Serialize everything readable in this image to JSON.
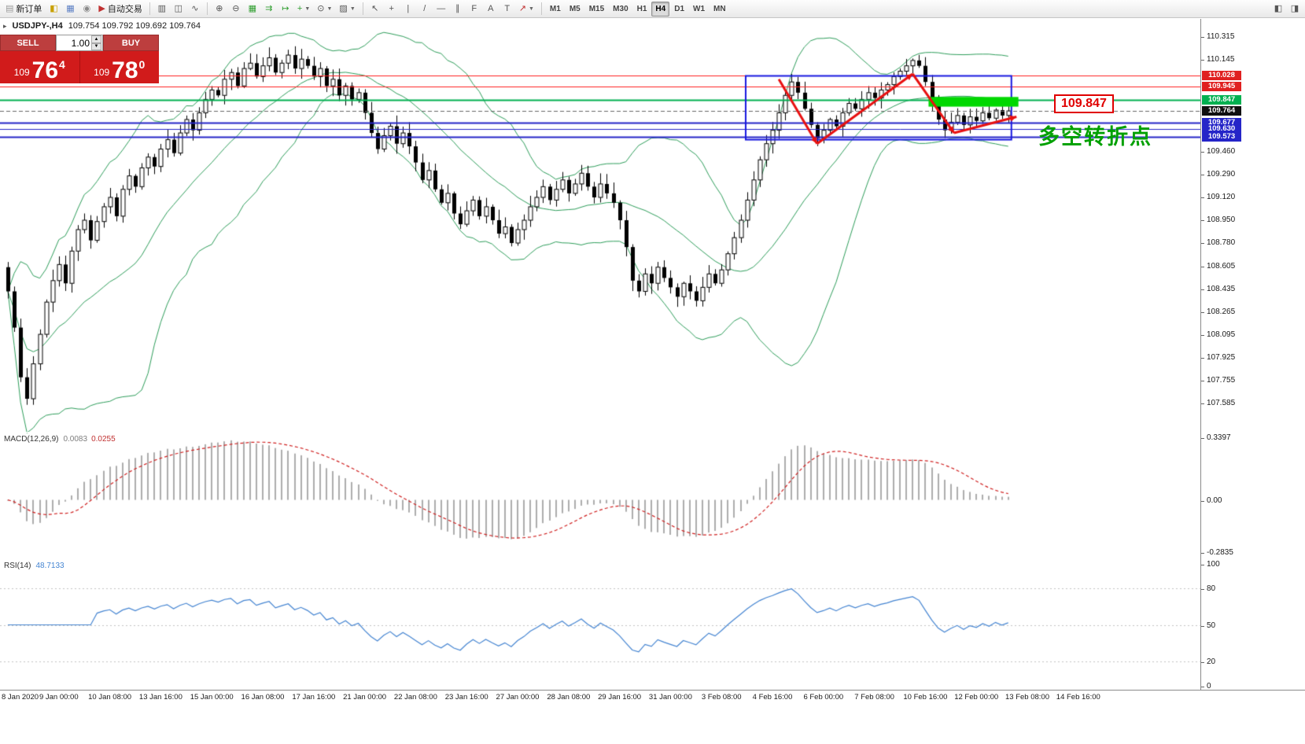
{
  "toolbar": {
    "groups": [
      [
        {
          "name": "new-order-button",
          "glyph": "▤",
          "glyph_color": "#9a9a9a",
          "label": "新订单"
        },
        {
          "name": "market-watch-button",
          "glyph": "◧",
          "glyph_color": "#c8a000"
        },
        {
          "name": "data-window-button",
          "glyph": "▦",
          "glyph_color": "#5b7fc4"
        },
        {
          "name": "navigator-button",
          "glyph": "◉",
          "glyph_color": "#8a8a8a"
        },
        {
          "name": "auto-trading-button",
          "glyph": "▶",
          "glyph_color": "#c03030",
          "label": "自动交易"
        }
      ],
      [
        {
          "name": "bars-chart-button",
          "glyph": "▥"
        },
        {
          "name": "candlestick-chart-button",
          "glyph": "◫"
        },
        {
          "name": "line-chart-button",
          "glyph": "∿"
        }
      ],
      [
        {
          "name": "zoom-in-button",
          "glyph": "⊕"
        },
        {
          "name": "zoom-out-button",
          "glyph": "⊖"
        },
        {
          "name": "tile-windows-button",
          "glyph": "▦",
          "glyph_color": "#2f9e2f"
        },
        {
          "name": "auto-scroll-button",
          "glyph": "⇉",
          "glyph_color": "#2f9e2f"
        },
        {
          "name": "chart-shift-button",
          "glyph": "↦",
          "glyph_color": "#2f9e2f"
        },
        {
          "name": "indicators-button",
          "glyph": "+",
          "glyph_color": "#2f9e2f",
          "caret": true
        },
        {
          "name": "periods-button",
          "glyph": "⊙",
          "caret": true
        },
        {
          "name": "templates-button",
          "glyph": "▨",
          "caret": true
        }
      ],
      [
        {
          "name": "cursor-tool-button",
          "glyph": "↖"
        },
        {
          "name": "crosshair-tool-button",
          "glyph": "+"
        },
        {
          "name": "vertical-line-tool-button",
          "glyph": "|"
        },
        {
          "name": "trendline-tool-button",
          "glyph": "/"
        },
        {
          "name": "horizontal-line-tool-button",
          "glyph": "—"
        },
        {
          "name": "channel-tool-button",
          "glyph": "∥"
        },
        {
          "name": "fibonacci-tool-button",
          "glyph": "F"
        },
        {
          "name": "text-tool-button",
          "glyph": "A"
        },
        {
          "name": "label-tool-button",
          "glyph": "T"
        },
        {
          "name": "arrows-tool-button",
          "glyph": "↗",
          "glyph_color": "#c03030",
          "caret": true
        }
      ]
    ],
    "timeframes": [
      "M1",
      "M5",
      "M15",
      "M30",
      "H1",
      "H4",
      "D1",
      "W1",
      "MN"
    ],
    "active_timeframe": "H4",
    "right_buttons": [
      {
        "name": "previous-chart-button",
        "glyph": "◧"
      },
      {
        "name": "next-chart-button",
        "glyph": "◨"
      }
    ]
  },
  "quote_header": {
    "expander_icon": "▸",
    "symbol": "USDJPY-,H4",
    "ohlc": "109.754 109.792 109.692 109.764"
  },
  "trade_panel": {
    "sell_label": "SELL",
    "buy_label": "BUY",
    "volume": "1.00",
    "sell_price": {
      "prefix": "109",
      "big": "76",
      "sup": "4"
    },
    "buy_price": {
      "prefix": "109",
      "big": "78",
      "sup": "0"
    }
  },
  "annotations": {
    "price_callout": "109.847",
    "turning_point_text": "多空转折点"
  },
  "price_axis": {
    "ticks": [
      "110.315",
      "110.145",
      "109.460",
      "109.290",
      "109.120",
      "108.950",
      "108.780",
      "108.605",
      "108.435",
      "108.265",
      "108.095",
      "107.925",
      "107.755",
      "107.585"
    ],
    "badges": [
      {
        "label": "110.028",
        "color": "#e02020"
      },
      {
        "label": "109.945",
        "color": "#e02020"
      },
      {
        "label": "109.847",
        "color": "#00b050"
      },
      {
        "label": "109.764",
        "color": "#101010"
      },
      {
        "label": "109.677",
        "color": "#2525c8"
      },
      {
        "label": "109.630",
        "color": "#2525c8"
      },
      {
        "label": "109.573",
        "color": "#2525c8"
      }
    ]
  },
  "time_axis": {
    "labels": [
      "8 Jan 2020",
      "9 Jan 00:00",
      "10 Jan 08:00",
      "13 Jan 16:00",
      "15 Jan 00:00",
      "16 Jan 08:00",
      "17 Jan 16:00",
      "21 Jan 00:00",
      "22 Jan 08:00",
      "23 Jan 16:00",
      "27 Jan 00:00",
      "28 Jan 08:00",
      "29 Jan 16:00",
      "31 Jan 00:00",
      "3 Feb 08:00",
      "4 Feb 16:00",
      "6 Feb 00:00",
      "7 Feb 08:00",
      "10 Feb 16:00",
      "12 Feb 00:00",
      "13 Feb 08:00",
      "14 Feb 16:00"
    ]
  },
  "macd_panel": {
    "title": "MACD(12,26,9)",
    "value_main": "0.0083",
    "value_signal": "0.0255",
    "axis_labels": [
      "0.3397",
      "0.00",
      "-0.2835"
    ]
  },
  "rsi_panel": {
    "title": "RSI(14)",
    "value": "48.7133",
    "axis_labels": [
      "100",
      "80",
      "50",
      "20",
      "0"
    ],
    "levels": [
      80,
      50,
      20
    ]
  },
  "chart_data": {
    "type": "candlestick",
    "symbol": "USDJPY-",
    "timeframe": "H4",
    "visible_range": {
      "price_min": 107.585,
      "price_max": 110.315,
      "start": "8 Jan 2020",
      "end": "14 Feb 2020"
    },
    "first_open": 108.6,
    "closes": [
      108.42,
      108.15,
      107.78,
      107.62,
      107.88,
      108.1,
      108.34,
      108.5,
      108.62,
      108.48,
      108.72,
      108.88,
      108.95,
      108.8,
      108.94,
      109.05,
      109.12,
      108.98,
      109.18,
      109.28,
      109.2,
      109.34,
      109.42,
      109.35,
      109.48,
      109.55,
      109.45,
      109.6,
      109.7,
      109.62,
      109.75,
      109.85,
      109.92,
      109.88,
      110.0,
      110.05,
      109.95,
      110.08,
      110.12,
      110.02,
      110.1,
      110.16,
      110.05,
      110.12,
      110.18,
      110.08,
      110.15,
      110.1,
      110.02,
      110.08,
      109.95,
      110.0,
      109.88,
      109.95,
      109.85,
      109.9,
      109.75,
      109.6,
      109.48,
      109.58,
      109.65,
      109.52,
      109.6,
      109.5,
      109.38,
      109.25,
      109.32,
      109.18,
      109.08,
      109.15,
      109.0,
      108.92,
      109.02,
      109.1,
      108.98,
      109.05,
      108.95,
      108.85,
      108.9,
      108.78,
      108.88,
      108.95,
      109.05,
      109.12,
      109.2,
      109.1,
      109.18,
      109.25,
      109.15,
      109.22,
      109.3,
      109.2,
      109.12,
      109.22,
      109.15,
      109.08,
      108.95,
      108.75,
      108.5,
      108.42,
      108.55,
      108.48,
      108.6,
      108.52,
      108.45,
      108.38,
      108.48,
      108.42,
      108.35,
      108.45,
      108.55,
      108.48,
      108.58,
      108.7,
      108.82,
      108.95,
      109.1,
      109.25,
      109.4,
      109.52,
      109.62,
      109.75,
      109.88,
      109.98,
      109.9,
      109.78,
      109.66,
      109.56,
      109.62,
      109.7,
      109.65,
      109.75,
      109.82,
      109.78,
      109.85,
      109.9,
      109.86,
      109.92,
      109.96,
      110.02,
      110.06,
      110.1,
      110.14,
      110.1,
      109.98,
      109.84,
      109.7,
      109.62,
      109.68,
      109.73,
      109.66,
      109.72,
      109.69,
      109.75,
      109.71,
      109.77,
      109.73,
      109.764
    ],
    "overlays": {
      "bollinger_bands": {
        "period": 20,
        "deviation": 2,
        "color": "#2e9e5b"
      },
      "horizontal_lines": [
        {
          "price": 110.028,
          "color": "#ff2020",
          "width": 1
        },
        {
          "price": 109.945,
          "color": "#ff2020",
          "width": 1
        },
        {
          "price": 109.847,
          "color": "#00b050",
          "width": 2
        },
        {
          "price": 109.764,
          "color": "#666666",
          "width": 1,
          "style": "dashed"
        },
        {
          "price": 109.677,
          "color": "#2525c8",
          "width": 2
        },
        {
          "price": 109.63,
          "color": "#2525c8",
          "width": 1
        },
        {
          "price": 109.573,
          "color": "#2525c8",
          "width": 2
        }
      ],
      "rectangle": {
        "bar_start": 115.8,
        "bar_end": 157.5,
        "price_top": 110.025,
        "price_bottom": 109.55,
        "color": "#1818e0"
      },
      "highlight_zone": {
        "bar_start": 144.5,
        "bar_end": 158.6,
        "price_top": 109.868,
        "price_bottom": 109.796,
        "fill": "#00d800"
      },
      "arrow_path": {
        "color": "#e81010",
        "points_bar_price": [
          [
            121,
            110.0
          ],
          [
            127,
            109.52
          ],
          [
            142,
            110.04
          ],
          [
            148.5,
            109.6
          ],
          [
            158.3,
            109.72
          ]
        ]
      }
    },
    "indicators": [
      {
        "name": "MACD",
        "fast": 12,
        "slow": 26,
        "signal": 9,
        "last_values": [
          0.0083,
          0.0255
        ],
        "range": [
          -0.2835,
          0.3397
        ]
      },
      {
        "name": "RSI",
        "period": 14,
        "last_value": 48.7133,
        "range": [
          0,
          100
        ]
      }
    ]
  }
}
